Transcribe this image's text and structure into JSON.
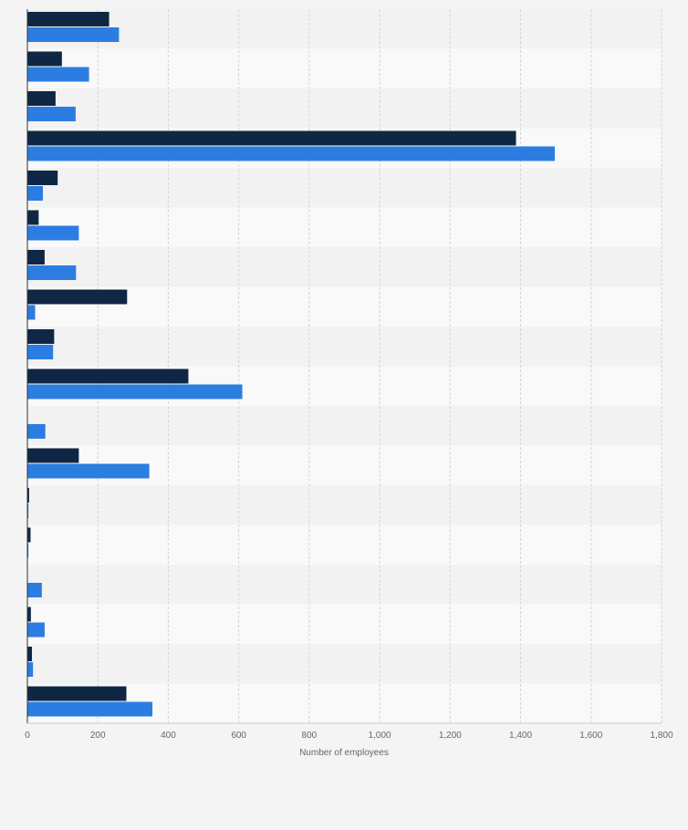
{
  "chart_data": {
    "type": "bar",
    "orientation": "horizontal",
    "xlabel": "Number of employees",
    "xlim": [
      0,
      1800
    ],
    "xticks": [
      0,
      200,
      400,
      600,
      800,
      1000,
      1200,
      1400,
      1600,
      1800
    ],
    "xtick_labels": [
      "0",
      "200",
      "400",
      "600",
      "800",
      "1,000",
      "1,200",
      "1,400",
      "1,600",
      "1,800"
    ],
    "grid": true,
    "series": [
      {
        "color": "#0f2744",
        "values": [
          232,
          98,
          80,
          1387,
          86,
          32,
          49,
          283,
          76,
          457,
          0,
          146,
          5,
          9,
          0,
          10,
          13,
          281
        ]
      },
      {
        "color": "#2b7de1",
        "values": [
          260,
          175,
          137,
          1497,
          44,
          146,
          138,
          22,
          73,
          610,
          51,
          346,
          3,
          3,
          41,
          49,
          16,
          355
        ]
      }
    ]
  }
}
